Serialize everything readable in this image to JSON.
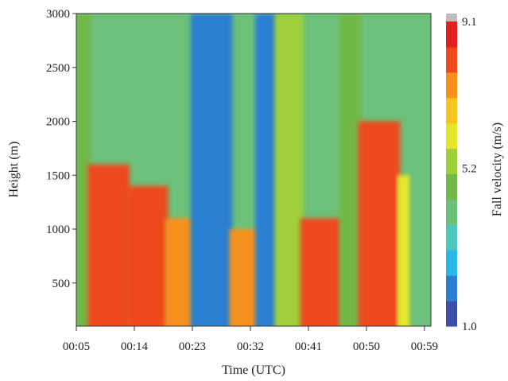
{
  "chart_data": {
    "type": "heatmap",
    "title": "",
    "xlabel": "Time (UTC)",
    "ylabel": "Height (m)",
    "colorbar_label": "Fall velocity (m/s)",
    "x_tick_labels": [
      "00:05",
      "00:14",
      "00:23",
      "00:32",
      "00:41",
      "00:50",
      "00:59"
    ],
    "x_ticks_minutes": [
      5,
      14,
      23,
      32,
      41,
      50,
      59
    ],
    "xlim_minutes": [
      5,
      60
    ],
    "y_ticks": [
      500,
      1000,
      1500,
      2000,
      2500,
      3000
    ],
    "ylim": [
      100,
      3000
    ],
    "colorbar": {
      "vmin": 1.0,
      "vmax": 9.1,
      "tick_values": [
        1.0,
        5.2,
        9.1
      ],
      "tick_labels": [
        "1.0",
        "5.2",
        "9.1"
      ],
      "over_color": "#bdbdbd",
      "colors": [
        "#3b4fa8",
        "#2c7fd0",
        "#29b8e8",
        "#4dc7c0",
        "#6cc07a",
        "#72b84a",
        "#9fcf3a",
        "#e3e62a",
        "#f6c51f",
        "#f6901d",
        "#ee4a1c",
        "#e02020"
      ]
    },
    "velocity_bands": [
      {
        "from_minutes": 5.0,
        "to_minutes": 7.0,
        "value": 4.5,
        "top_m": 3000
      },
      {
        "from_minutes": 7.0,
        "to_minutes": 13.0,
        "value": 8.2,
        "top_m": 1600
      },
      {
        "from_minutes": 13.0,
        "to_minutes": 19.0,
        "value": 8.4,
        "top_m": 1400
      },
      {
        "from_minutes": 19.0,
        "to_minutes": 23.0,
        "value": 7.2,
        "top_m": 1100
      },
      {
        "from_minutes": 23.0,
        "to_minutes": 29.0,
        "value": 2.0,
        "top_m": 3000
      },
      {
        "from_minutes": 29.0,
        "to_minutes": 33.0,
        "value": 7.6,
        "top_m": 1000
      },
      {
        "from_minutes": 33.0,
        "to_minutes": 36.0,
        "value": 2.2,
        "top_m": 3000
      },
      {
        "from_minutes": 36.0,
        "to_minutes": 40.0,
        "value": 5.2,
        "top_m": 3000
      },
      {
        "from_minutes": 40.0,
        "to_minutes": 46.0,
        "value": 8.3,
        "top_m": 1100
      },
      {
        "from_minutes": 46.0,
        "to_minutes": 49.0,
        "value": 5.0,
        "top_m": 3000
      },
      {
        "from_minutes": 49.0,
        "to_minutes": 55.0,
        "value": 8.1,
        "top_m": 2000
      },
      {
        "from_minutes": 55.0,
        "to_minutes": 57.0,
        "value": 6.2,
        "top_m": 1500
      },
      {
        "from_minutes": 57.0,
        "to_minutes": 60.0,
        "value": 4.2,
        "top_m": 3000
      }
    ]
  }
}
